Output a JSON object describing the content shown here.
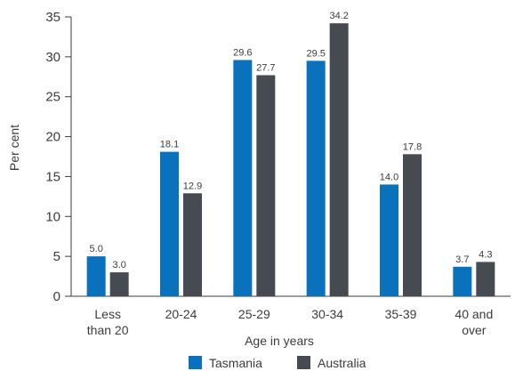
{
  "chart_data": {
    "type": "bar",
    "categories": [
      [
        "Less",
        "than 20"
      ],
      [
        "20-24"
      ],
      [
        "25-29"
      ],
      [
        "30-34"
      ],
      [
        "35-39"
      ],
      [
        "40 and",
        "over"
      ]
    ],
    "series": [
      {
        "name": "Tasmania",
        "values": [
          5.0,
          18.1,
          29.6,
          29.5,
          14.0,
          3.7
        ],
        "labels": [
          "5.0",
          "18.1",
          "29.6",
          "29.5",
          "14.0",
          "3.7"
        ],
        "color": "#0a72bd"
      },
      {
        "name": "Australia",
        "values": [
          3.0,
          12.9,
          27.7,
          34.2,
          17.8,
          4.3
        ],
        "labels": [
          "3.0",
          "12.9",
          "27.7",
          "34.2",
          "17.8",
          "4.3"
        ],
        "color": "#464a51"
      }
    ],
    "xlabel": "Age in years",
    "ylabel": "Per cent",
    "ylim": [
      0,
      35
    ],
    "yticks": [
      "0",
      "5",
      "10",
      "15",
      "20",
      "25",
      "30",
      "35"
    ],
    "grid": false,
    "legend": "bottom"
  }
}
